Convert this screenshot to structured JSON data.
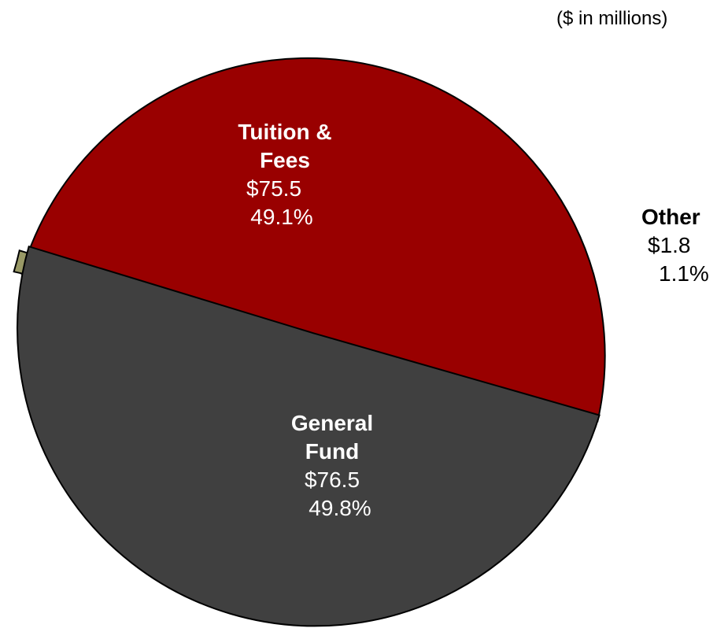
{
  "chart_data": {
    "type": "pie",
    "units_note": "($ in millions)",
    "slices": [
      {
        "name": "Tuition & Fees",
        "name_lines": [
          "Tuition &",
          "Fees"
        ],
        "value": 75.5,
        "value_label": "$75.5",
        "percent": 49.1,
        "percent_label": "49.1%",
        "color": "#990000"
      },
      {
        "name": "Other",
        "name_lines": [
          "Other"
        ],
        "value": 1.8,
        "value_label": "$1.8",
        "percent": 1.1,
        "percent_label": "1.1%",
        "color": "#999966"
      },
      {
        "name": "General Fund",
        "name_lines": [
          "General",
          "Fund"
        ],
        "value": 76.5,
        "value_label": "$76.5",
        "percent": 49.8,
        "percent_label": "49.8%",
        "color": "#404040"
      }
    ],
    "exploded": true,
    "legend": "none"
  }
}
